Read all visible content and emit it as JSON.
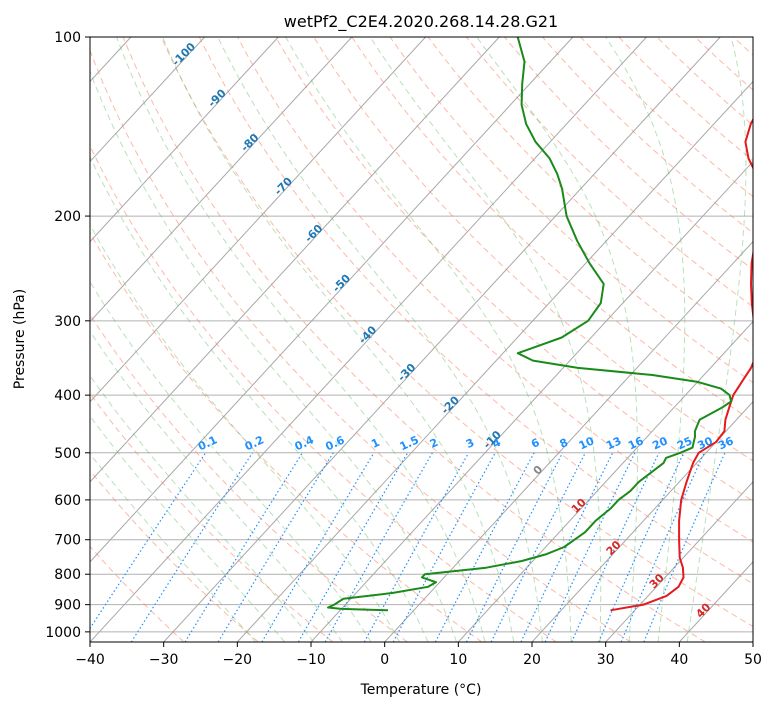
{
  "chart_data": {
    "type": "skew-t",
    "title": "wetPf2_C2E4.2020.268.14.28.G21",
    "xlabel": "Temperature (°C)",
    "ylabel": "Pressure (hPa)",
    "xlim": [
      -40,
      50
    ],
    "ylim": [
      1040,
      100
    ],
    "x_ticks": [
      "−40",
      "−30",
      "−20",
      "−10",
      "0",
      "10",
      "20",
      "30",
      "40",
      "50"
    ],
    "y_ticks": [
      "100",
      "200",
      "300",
      "400",
      "500",
      "600",
      "700",
      "800",
      "900",
      "1000"
    ],
    "y_scale": "log",
    "grid": true,
    "colors": {
      "temperature": "#e41a1c",
      "dewpoint": "#1a8a1a",
      "isotherm_labels": "#1f77b4",
      "mixing_ratio": "#1e90ff",
      "dry_adiabat": "#fa8060",
      "moist_adiabat": "#66bb66",
      "freezing_label": "#888888",
      "warm_labels": "#d62728"
    },
    "isotherm_labels": [
      "-100",
      "-90",
      "-80",
      "-70",
      "-60",
      "-50",
      "-40",
      "-30",
      "-20",
      "-10"
    ],
    "freezing_label": "0",
    "warm_isotherm_labels": [
      "10",
      "20",
      "30",
      "40"
    ],
    "mixing_ratio_labels": [
      "0.1",
      "0.2",
      "0.4",
      "0.6",
      "1",
      "1.5",
      "2",
      "3",
      "4",
      "6",
      "8",
      "10",
      "13",
      "16",
      "20",
      "25",
      "30",
      "36"
    ],
    "series": [
      {
        "type": "temperature",
        "points": [
          [
            920,
            26.7
          ],
          [
            900,
            30.5
          ],
          [
            870,
            32.5
          ],
          [
            840,
            33.0
          ],
          [
            810,
            32.5
          ],
          [
            780,
            31.2
          ],
          [
            750,
            29.5
          ],
          [
            700,
            27.2
          ],
          [
            650,
            24.8
          ],
          [
            600,
            22.5
          ],
          [
            560,
            21.0
          ],
          [
            520,
            19.5
          ],
          [
            500,
            19.0
          ],
          [
            480,
            20.0
          ],
          [
            460,
            19.8
          ],
          [
            440,
            18.5
          ],
          [
            420,
            17.5
          ],
          [
            400,
            16.5
          ],
          [
            380,
            16.0
          ],
          [
            360,
            15.5
          ],
          [
            340,
            14.5
          ],
          [
            320,
            12.5
          ],
          [
            300,
            10.0
          ],
          [
            280,
            7.5
          ],
          [
            260,
            5.0
          ],
          [
            240,
            2.5
          ],
          [
            220,
            0.2
          ],
          [
            200,
            -2.5
          ],
          [
            180,
            -5.5
          ],
          [
            170,
            -8.0
          ],
          [
            160,
            -11.0
          ],
          [
            150,
            -13.5
          ],
          [
            140,
            -15.0
          ],
          [
            130,
            -16.0
          ],
          [
            120,
            -17.0
          ],
          [
            115,
            -17.0
          ],
          [
            110,
            -17.0
          ],
          [
            105,
            -17.8
          ],
          [
            100,
            -19.2
          ]
        ]
      },
      {
        "type": "dewpoint",
        "points": [
          [
            920,
            -3.5
          ],
          [
            915,
            -10.0
          ],
          [
            910,
            -12.0
          ],
          [
            900,
            -11.5
          ],
          [
            880,
            -11.0
          ],
          [
            860,
            -5.0
          ],
          [
            840,
            -1.0
          ],
          [
            825,
            -0.5
          ],
          [
            810,
            -3.0
          ],
          [
            800,
            -3.0
          ],
          [
            780,
            4.5
          ],
          [
            760,
            8.5
          ],
          [
            740,
            11.0
          ],
          [
            720,
            12.5
          ],
          [
            700,
            13.0
          ],
          [
            680,
            13.5
          ],
          [
            650,
            13.5
          ],
          [
            620,
            14.0
          ],
          [
            600,
            14.0
          ],
          [
            580,
            14.5
          ],
          [
            560,
            14.5
          ],
          [
            540,
            15.0
          ],
          [
            520,
            15.5
          ],
          [
            510,
            15.2
          ],
          [
            500,
            16.5
          ],
          [
            490,
            17.5
          ],
          [
            480,
            17.0
          ],
          [
            470,
            16.5
          ],
          [
            460,
            15.8
          ],
          [
            440,
            15.0
          ],
          [
            420,
            16.5
          ],
          [
            410,
            17.0
          ],
          [
            400,
            16.0
          ],
          [
            390,
            14.0
          ],
          [
            380,
            10.0
          ],
          [
            370,
            3.0
          ],
          [
            360,
            -8.0
          ],
          [
            350,
            -15.0
          ],
          [
            340,
            -18.0
          ],
          [
            330,
            -16.0
          ],
          [
            320,
            -14.0
          ],
          [
            300,
            -12.5
          ],
          [
            280,
            -13.0
          ],
          [
            260,
            -15.0
          ],
          [
            240,
            -19.5
          ],
          [
            220,
            -24.0
          ],
          [
            200,
            -28.5
          ],
          [
            180,
            -32.5
          ],
          [
            170,
            -35.0
          ],
          [
            160,
            -38.0
          ],
          [
            150,
            -42.0
          ],
          [
            140,
            -45.5
          ],
          [
            130,
            -48.5
          ],
          [
            120,
            -51.0
          ],
          [
            110,
            -53.5
          ],
          [
            100,
            -57.5
          ]
        ]
      }
    ]
  }
}
